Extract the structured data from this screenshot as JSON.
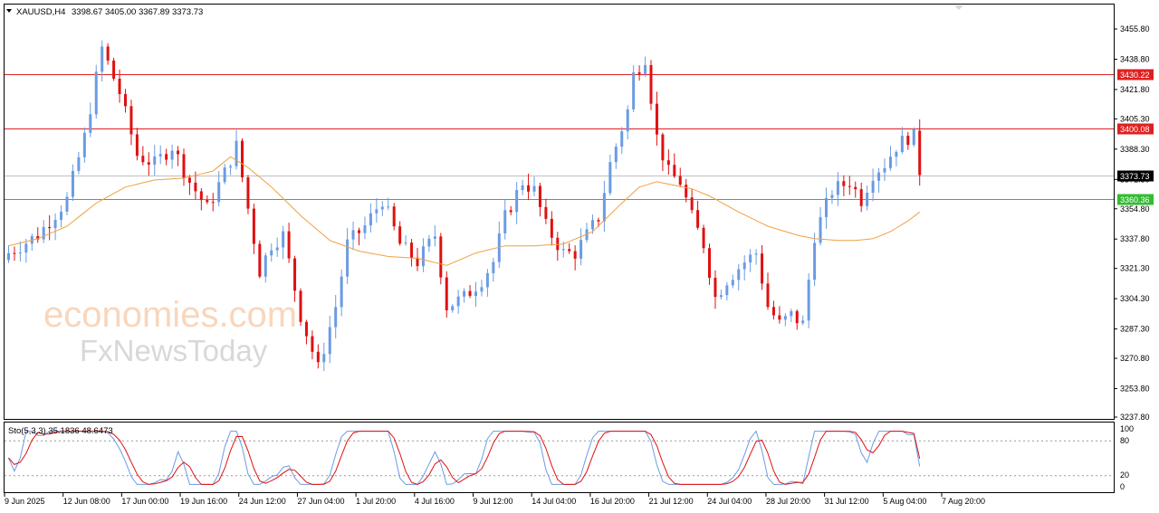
{
  "header": {
    "symbol": "XAUUSD,H4",
    "ohlc": "3398.67 3405.00 3367.89 3373.73"
  },
  "oscillator": {
    "label": "Sto(5,3,3) 35.1836 48.6473",
    "scale": [
      "100",
      "80",
      "20",
      "0"
    ],
    "levels": [
      80,
      20
    ]
  },
  "watermark": {
    "line1": "economies.com",
    "line2": "FxNewsToday"
  },
  "colors": {
    "bull": "#6b9be3",
    "bear": "#e01010",
    "ma": "#f0a040",
    "resistance": "#e02020",
    "support": "#33bb33",
    "current": "#c0c0c0",
    "stoch_main": "#6b9be3",
    "stoch_signal": "#e01010"
  },
  "chart_data": {
    "type": "candlestick",
    "symbol": "XAUUSD",
    "timeframe": "H4",
    "y_ticks": [
      "3455.80",
      "3438.80",
      "3421.80",
      "3405.30",
      "3388.30",
      "3371.30",
      "3354.80",
      "3337.80",
      "3321.30",
      "3304.30",
      "3287.30",
      "3270.80",
      "3253.80",
      "3237.80"
    ],
    "ylim": [
      3237.8,
      3462
    ],
    "x_labels": [
      "9 Jun 2025",
      "12 Jun 08:00",
      "17 Jun 00:00",
      "19 Jun 16:00",
      "24 Jun 12:00",
      "27 Jun 04:00",
      "1 Jul 20:00",
      "4 Jul 16:00",
      "9 Jul 12:00",
      "14 Jul 04:00",
      "16 Jul 20:00",
      "21 Jul 12:00",
      "24 Jul 04:00",
      "28 Jul 20:00",
      "31 Jul 12:00",
      "5 Aug 04:00",
      "7 Aug 20:00"
    ],
    "levels": [
      {
        "price": 3430.22,
        "label": "3430.22",
        "kind": "resistance"
      },
      {
        "price": 3400.08,
        "label": "3400.08",
        "kind": "resistance"
      },
      {
        "price": 3373.73,
        "label": "3373.73",
        "kind": "current"
      },
      {
        "price": 3360.36,
        "label": "3360.36",
        "kind": "support"
      }
    ],
    "close_path": [
      [
        0,
        3330
      ],
      [
        5,
        3340
      ],
      [
        10,
        3360
      ],
      [
        13,
        3395
      ],
      [
        16,
        3445
      ],
      [
        19,
        3420
      ],
      [
        22,
        3385
      ],
      [
        25,
        3380
      ],
      [
        28,
        3390
      ],
      [
        31,
        3370
      ],
      [
        34,
        3355
      ],
      [
        37,
        3375
      ],
      [
        39,
        3390
      ],
      [
        41,
        3355
      ],
      [
        43,
        3320
      ],
      [
        45,
        3335
      ],
      [
        47,
        3340
      ],
      [
        50,
        3295
      ],
      [
        53,
        3265
      ],
      [
        56,
        3300
      ],
      [
        58,
        3335
      ],
      [
        61,
        3345
      ],
      [
        64,
        3360
      ],
      [
        67,
        3335
      ],
      [
        70,
        3325
      ],
      [
        73,
        3340
      ],
      [
        75,
        3300
      ],
      [
        78,
        3305
      ],
      [
        81,
        3315
      ],
      [
        83,
        3325
      ],
      [
        85,
        3350
      ],
      [
        88,
        3370
      ],
      [
        90,
        3365
      ],
      [
        92,
        3345
      ],
      [
        95,
        3330
      ],
      [
        97,
        3330
      ],
      [
        99,
        3340
      ],
      [
        101,
        3350
      ],
      [
        103,
        3380
      ],
      [
        106,
        3410
      ],
      [
        107,
        3430
      ],
      [
        109,
        3440
      ],
      [
        111,
        3395
      ],
      [
        113,
        3375
      ],
      [
        115,
        3370
      ],
      [
        117,
        3350
      ],
      [
        119,
        3335
      ],
      [
        121,
        3305
      ],
      [
        123,
        3315
      ],
      [
        126,
        3325
      ],
      [
        128,
        3330
      ],
      [
        130,
        3300
      ],
      [
        132,
        3290
      ],
      [
        134,
        3295
      ],
      [
        136,
        3290
      ],
      [
        138,
        3340
      ],
      [
        141,
        3365
      ],
      [
        144,
        3370
      ],
      [
        146,
        3360
      ],
      [
        148,
        3375
      ],
      [
        150,
        3380
      ],
      [
        152,
        3390
      ],
      [
        154,
        3395
      ],
      [
        155,
        3395
      ],
      [
        156,
        3374
      ]
    ],
    "ma_path": [
      [
        0,
        3334
      ],
      [
        5,
        3338
      ],
      [
        10,
        3345
      ],
      [
        15,
        3358
      ],
      [
        20,
        3367
      ],
      [
        25,
        3371
      ],
      [
        30,
        3372
      ],
      [
        35,
        3376
      ],
      [
        38,
        3384
      ],
      [
        41,
        3378
      ],
      [
        45,
        3367
      ],
      [
        50,
        3351
      ],
      [
        55,
        3337
      ],
      [
        60,
        3331
      ],
      [
        65,
        3328
      ],
      [
        70,
        3327
      ],
      [
        75,
        3323
      ],
      [
        80,
        3330
      ],
      [
        85,
        3334
      ],
      [
        90,
        3334
      ],
      [
        95,
        3335
      ],
      [
        100,
        3342
      ],
      [
        105,
        3358
      ],
      [
        108,
        3367
      ],
      [
        111,
        3370
      ],
      [
        114,
        3368
      ],
      [
        117,
        3366
      ],
      [
        120,
        3362
      ],
      [
        125,
        3353
      ],
      [
        130,
        3345
      ],
      [
        135,
        3340
      ],
      [
        138,
        3338
      ],
      [
        142,
        3337
      ],
      [
        145,
        3337
      ],
      [
        148,
        3338
      ],
      [
        151,
        3342
      ],
      [
        154,
        3348
      ],
      [
        156,
        3353
      ]
    ],
    "stochastic": {
      "name": "Sto(5,3,3)",
      "main": 35.1836,
      "signal": 48.6473,
      "ylim": [
        0,
        100
      ]
    }
  }
}
